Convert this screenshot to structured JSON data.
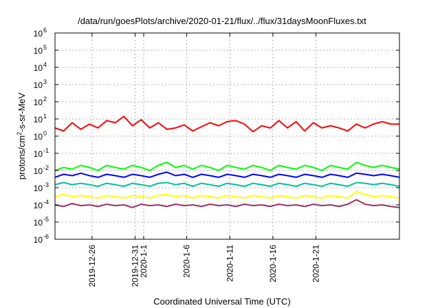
{
  "chart_data": {
    "type": "line",
    "title": "/data/run/goesPlots/archive/2020-01-21/flux/../flux/31daysMoonFluxes.txt",
    "xlabel": "Coordinated Universal Time (UTC)",
    "ylabel_parts": [
      "protons/cm",
      "2",
      "-s-sr-MeV"
    ],
    "y_scale": "log",
    "ylim": [
      1e-06,
      1000000.0
    ],
    "grid": true,
    "x_domain_days": [
      -9.3,
      30.7
    ],
    "y_ticks": [
      {
        "base": "10",
        "exp": "-6",
        "value": 1e-06
      },
      {
        "base": "10",
        "exp": "-5",
        "value": 1e-05
      },
      {
        "base": "10",
        "exp": "-4",
        "value": 0.0001
      },
      {
        "base": "10",
        "exp": "-3",
        "value": 0.001
      },
      {
        "base": "10",
        "exp": "-2",
        "value": 0.01
      },
      {
        "base": "10",
        "exp": "-1",
        "value": 0.1
      },
      {
        "base": "10",
        "exp": "0",
        "value": 1
      },
      {
        "base": "10",
        "exp": "1",
        "value": 10
      },
      {
        "base": "10",
        "exp": "2",
        "value": 100
      },
      {
        "base": "10",
        "exp": "3",
        "value": 1000
      },
      {
        "base": "10",
        "exp": "4",
        "value": 10000
      },
      {
        "base": "10",
        "exp": "5",
        "value": 100000
      },
      {
        "base": "10",
        "exp": "6",
        "value": 1000000
      }
    ],
    "x_ticks": [
      {
        "label": "2019-12-26",
        "day": -5
      },
      {
        "label": "2019-12-31",
        "day": 0
      },
      {
        "label": "2020-1-1",
        "day": 1
      },
      {
        "label": "2020-1-6",
        "day": 6
      },
      {
        "label": "2020-1-11",
        "day": 11
      },
      {
        "label": "2020-1-16",
        "day": 16
      },
      {
        "label": "2020-1-21",
        "day": 21
      }
    ],
    "series": [
      {
        "color": "#ff0000",
        "values": [
          3.0,
          2.0,
          6.0,
          2.5,
          5.0,
          3.0,
          8.0,
          6.0,
          14.0,
          4.0,
          9.0,
          3.0,
          6.0,
          2.5,
          3.0,
          4.5,
          2.0,
          3.5,
          6.0,
          4.0,
          7.0,
          8.0,
          5.0,
          1.8,
          4.0,
          3.0,
          8.0,
          3.0,
          7.0,
          2.0,
          6.0,
          3.0,
          4.0,
          3.0,
          2.0,
          5.0,
          3.0,
          5.0,
          7.0,
          5.0,
          5.0
        ]
      },
      {
        "color": "#00ff00",
        "values": [
          0.01,
          0.015,
          0.012,
          0.02,
          0.015,
          0.01,
          0.02,
          0.015,
          0.012,
          0.02,
          0.015,
          0.01,
          0.02,
          0.03,
          0.015,
          0.02,
          0.012,
          0.02,
          0.015,
          0.01,
          0.02,
          0.015,
          0.012,
          0.02,
          0.015,
          0.01,
          0.02,
          0.015,
          0.012,
          0.02,
          0.015,
          0.01,
          0.02,
          0.015,
          0.012,
          0.03,
          0.02,
          0.015,
          0.02,
          0.015,
          0.012
        ]
      },
      {
        "color": "#0000ff",
        "values": [
          0.004,
          0.006,
          0.005,
          0.007,
          0.005,
          0.004,
          0.006,
          0.005,
          0.004,
          0.006,
          0.005,
          0.004,
          0.006,
          0.008,
          0.005,
          0.006,
          0.004,
          0.006,
          0.005,
          0.004,
          0.006,
          0.005,
          0.004,
          0.006,
          0.005,
          0.004,
          0.006,
          0.005,
          0.004,
          0.006,
          0.005,
          0.004,
          0.006,
          0.005,
          0.004,
          0.007,
          0.006,
          0.005,
          0.006,
          0.005,
          0.004
        ]
      },
      {
        "color": "#00c0a0",
        "values": [
          0.0015,
          0.002,
          0.0015,
          0.0018,
          0.0015,
          0.0012,
          0.0018,
          0.0015,
          0.0012,
          0.0018,
          0.0015,
          0.0012,
          0.0018,
          0.002,
          0.0015,
          0.0018,
          0.0012,
          0.0018,
          0.0015,
          0.0012,
          0.0018,
          0.0015,
          0.0012,
          0.0018,
          0.0015,
          0.0012,
          0.0018,
          0.0015,
          0.0012,
          0.0018,
          0.0015,
          0.0012,
          0.0018,
          0.0015,
          0.0012,
          0.002,
          0.0018,
          0.0015,
          0.0018,
          0.0015,
          0.0012
        ]
      },
      {
        "color": "#ffff00",
        "values": [
          0.0003,
          0.0004,
          0.0003,
          0.00035,
          0.0003,
          0.00025,
          0.00035,
          0.0003,
          0.00025,
          0.00035,
          0.0003,
          0.00025,
          0.00035,
          0.0004,
          0.0003,
          0.00035,
          0.00025,
          0.00035,
          0.0003,
          0.00025,
          0.00035,
          0.0003,
          0.00025,
          0.00035,
          0.0003,
          0.00025,
          0.00035,
          0.0003,
          0.00025,
          0.00035,
          0.0003,
          0.00025,
          0.00035,
          0.0003,
          0.00025,
          0.0006,
          0.0004,
          0.0003,
          0.00035,
          0.0003,
          0.00025
        ]
      },
      {
        "color": "#993366",
        "values": [
          0.0001,
          8e-05,
          0.00012,
          9e-05,
          0.0001,
          8e-05,
          0.00011,
          9e-05,
          0.0001,
          7e-05,
          0.00011,
          9e-05,
          0.0001,
          8e-05,
          0.00011,
          9e-05,
          0.0001,
          8e-05,
          0.00011,
          9e-05,
          0.0001,
          8e-05,
          0.00011,
          9e-05,
          0.0001,
          8e-05,
          0.00011,
          9e-05,
          0.0001,
          8e-05,
          0.00011,
          9e-05,
          0.0001,
          8e-05,
          0.00011,
          0.0002,
          0.00011,
          9e-05,
          0.0001,
          8e-05,
          7e-05
        ]
      }
    ]
  }
}
